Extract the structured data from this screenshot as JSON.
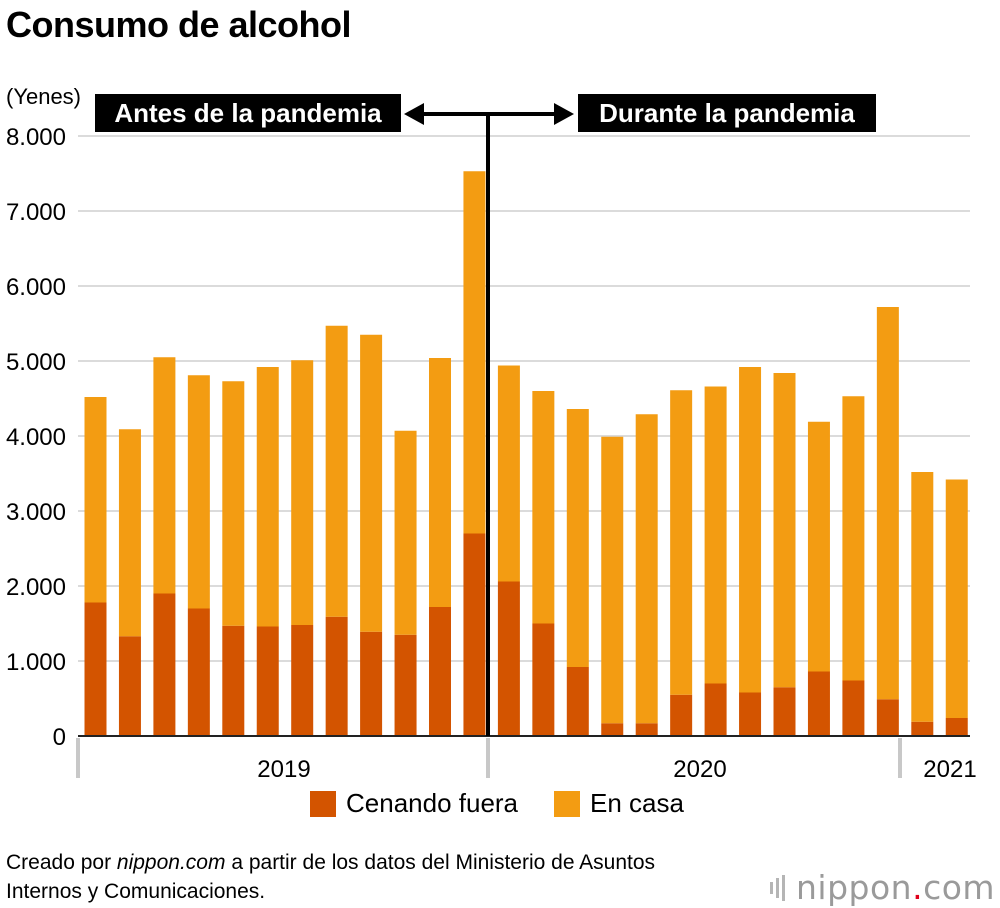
{
  "title": "Consumo de alcohol",
  "unit_label": "(Yenes)",
  "colors": {
    "dining_out": "#d35400",
    "at_home": "#f39c12"
  },
  "annotations": {
    "before": "Antes de la pandemia",
    "during": "Durante la pandemia"
  },
  "legend": {
    "dining_out": "Cenando fuera",
    "at_home": "En casa"
  },
  "source": {
    "prefix": "Creado por ",
    "site": "nippon.com",
    "suffix": " a partir de los datos del Ministerio de Asuntos Internos y Comunicaciones."
  },
  "logo": {
    "main": "nippon",
    "dot": ".",
    "tld": "com"
  },
  "chart_data": {
    "type": "bar",
    "stacked": true,
    "ylim": [
      0,
      8000
    ],
    "ylabel": "(Yenes)",
    "yticks": [
      "0",
      "1.000",
      "2.000",
      "3.000",
      "4.000",
      "5.000",
      "6.000",
      "7.000",
      "8.000"
    ],
    "year_labels": [
      "2019",
      "2020",
      "2021"
    ],
    "series": [
      {
        "name": "Cenando fuera",
        "values": [
          1780,
          1330,
          1900,
          1700,
          1470,
          1460,
          1480,
          1590,
          1390,
          1350,
          1720,
          2700,
          2060,
          1500,
          920,
          170,
          170,
          550,
          700,
          580,
          650,
          860,
          740,
          490,
          190,
          240
        ]
      },
      {
        "name": "En casa",
        "values": [
          2740,
          2760,
          3150,
          3110,
          3260,
          3460,
          3530,
          3880,
          3960,
          2720,
          3320,
          4830,
          2880,
          3100,
          3440,
          3820,
          4120,
          4060,
          3960,
          4340,
          4190,
          3330,
          3790,
          5230,
          3330,
          3180
        ]
      }
    ]
  }
}
